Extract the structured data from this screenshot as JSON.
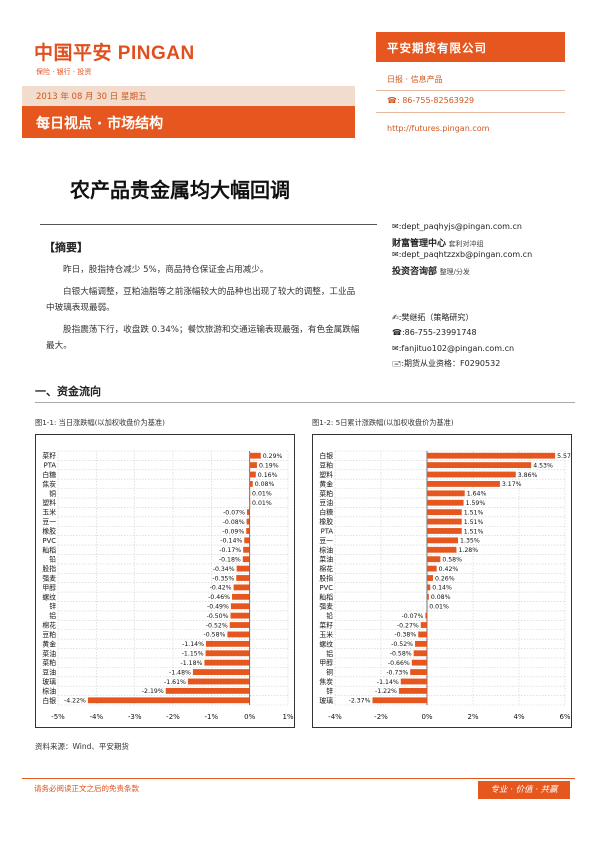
{
  "header": {
    "logo_text": "中国平安 PINGAN",
    "logo_sub": "保险 · 银行 · 投资",
    "date": "2013 年 08 月 30 日 星期五",
    "report_title": "每日视点 · 市场结构",
    "company_name": "平安期货有限公司",
    "report_type": "日报 · 信息产品",
    "phone": "☎: 86-755-82563929",
    "website": "http://futures.pingan.com"
  },
  "main_title": "农产品贵金属均大幅回调",
  "summary": {
    "heading": "【摘要】",
    "paragraphs": [
      "昨日，股指持仓减少 5%，商品持仓保证金占用减少。",
      "白银大幅调整，豆粕油脂等之前涨幅较大的品种也出现了较大的调整，工业品中玻璃表现最弱。",
      "股指震荡下行，收盘跌 0.34%；餐饮旅游和交通运输表现最强，有色金属跌幅最大。"
    ]
  },
  "contacts": {
    "email1": "✉:dept_paqhyjs@pingan.com.cn",
    "dept1": "财富管理中心",
    "dept1_note": "套利对冲组",
    "email2": "✉:dept_paqhtzzxb@pingan.com.cn",
    "dept2": "投资咨询部",
    "dept2_note": "整理/分发",
    "author": "✍:樊继拓（策略研究）",
    "author_phone": "☎:86-755-23991748",
    "author_email": "✉:fanjituo102@pingan.com.cn",
    "license": "🖃:期货从业资格：F0290532"
  },
  "section_title": "一、资金流向",
  "chart1_title": "图1-1: 当日涨跌幅(以加权收盘价为基准)",
  "chart2_title": "图1-2: 5日累计涨跌幅(以加权收盘价为基准)",
  "chart_data": [
    {
      "type": "bar",
      "orientation": "horizontal",
      "title": "图1-1: 当日涨跌幅(以加权收盘价为基准)",
      "categories": [
        "菜籽",
        "PTA",
        "白糖",
        "焦炭",
        "铜",
        "塑料",
        "玉米",
        "豆一",
        "橡胶",
        "PVC",
        "籼稻",
        "铅",
        "股指",
        "强麦",
        "甲醇",
        "螺纹",
        "锌",
        "铝",
        "棉花",
        "豆粕",
        "黄金",
        "菜油",
        "菜粕",
        "豆油",
        "玻璃",
        "棕油",
        "白银"
      ],
      "values": [
        0.29,
        0.19,
        0.16,
        0.08,
        0.01,
        0.01,
        -0.07,
        -0.08,
        -0.09,
        -0.14,
        -0.17,
        -0.18,
        -0.34,
        -0.35,
        -0.42,
        -0.46,
        -0.49,
        -0.5,
        -0.52,
        -0.58,
        -1.14,
        -1.15,
        -1.18,
        -1.48,
        -1.61,
        -2.19,
        -4.22
      ],
      "labels": [
        "0.29%",
        "0.19%",
        "0.16%",
        "0.08%",
        "0.01%",
        "0.01%",
        "-0.07%",
        "-0.08%",
        "-0.09%",
        "-0.14%",
        "-0.17%",
        "-0.18%",
        "-0.34%",
        "-0.35%",
        "-0.42%",
        "-0.46%",
        "-0.49%",
        "-0.50%",
        "-0.52%",
        "-0.58%",
        "-1.14%",
        "-1.15%",
        "-1.18%",
        "-1.48%",
        "-1.61%",
        "-2.19%",
        "-4.22%"
      ],
      "xlim": [
        -5,
        1
      ],
      "ticks": [
        "-5%",
        "-4%",
        "-3%",
        "-2%",
        "-1%",
        "0%",
        "1%"
      ],
      "tick_values": [
        -5,
        -4,
        -3,
        -2,
        -1,
        0,
        1
      ],
      "grid": true,
      "bar_color": "#e5571e"
    },
    {
      "type": "bar",
      "orientation": "horizontal",
      "title": "图1-2: 5日累计涨跌幅(以加权收盘价为基准)",
      "categories": [
        "白银",
        "豆粕",
        "塑料",
        "黄金",
        "菜粕",
        "豆油",
        "白糖",
        "橡胶",
        "PTA",
        "豆一",
        "棕油",
        "菜油",
        "棉花",
        "股指",
        "PVC",
        "籼稻",
        "强麦",
        "铅",
        "菜籽",
        "玉米",
        "螺纹",
        "铝",
        "甲醇",
        "铜",
        "焦炭",
        "锌",
        "玻璃"
      ],
      "values": [
        5.57,
        4.53,
        3.86,
        3.17,
        1.64,
        1.59,
        1.51,
        1.51,
        1.51,
        1.35,
        1.28,
        0.58,
        0.42,
        0.26,
        0.14,
        0.08,
        0.01,
        -0.07,
        -0.27,
        -0.38,
        -0.52,
        -0.58,
        -0.66,
        -0.73,
        -1.14,
        -1.22,
        -2.37
      ],
      "labels": [
        "5.57%",
        "4.53%",
        "3.86%",
        "3.17%",
        "1.64%",
        "1.59%",
        "1.51%",
        "1.51%",
        "1.51%",
        "1.35%",
        "1.28%",
        "0.58%",
        "0.42%",
        "0.26%",
        "0.14%",
        "0.08%",
        "0.01%",
        "-0.07%",
        "-0.27%",
        "-0.38%",
        "-0.52%",
        "-0.58%",
        "-0.66%",
        "-0.73%",
        "-1.14%",
        "-1.22%",
        "-2.37%"
      ],
      "xlim": [
        -4,
        6
      ],
      "ticks": [
        "-4%",
        "-2%",
        "0%",
        "2%",
        "4%",
        "6%"
      ],
      "tick_values": [
        -4,
        -2,
        0,
        2,
        4,
        6
      ],
      "grid": true,
      "bar_color": "#e5571e"
    }
  ],
  "source": "资料来源：Wind、平安期货",
  "footer": {
    "disclaimer": "请务必阅读正文之后的免责条款",
    "slogan": "专业 · 价值 · 共赢"
  }
}
